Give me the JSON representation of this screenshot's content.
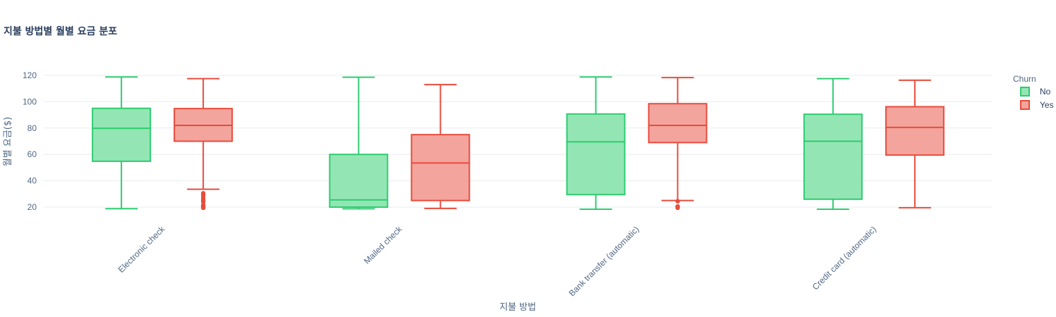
{
  "chart_data": {
    "type": "box",
    "title": "지불 방법별 월별 요금 분포",
    "xlabel": "지불 방법",
    "ylabel": "월별 요금($)",
    "categories": [
      "Electronic check",
      "Mailed check",
      "Bank transfer (automatic)",
      "Credit card (automatic)"
    ],
    "yticks": [
      20,
      40,
      60,
      80,
      100,
      120
    ],
    "ylim": [
      13,
      127
    ],
    "grid": true,
    "legend": {
      "title": "Churn",
      "position": "top-right"
    },
    "series": [
      {
        "name": "No",
        "color": "#2ecc71",
        "fill": "#94e5b4",
        "boxes": [
          {
            "min": 18.8,
            "q1": 54.8,
            "median": 79.8,
            "q3": 95.0,
            "max": 118.8,
            "outliers": []
          },
          {
            "min": 18.7,
            "q1": 20.0,
            "median": 25.5,
            "q3": 60.0,
            "max": 118.6,
            "outliers": []
          },
          {
            "min": 18.4,
            "q1": 29.5,
            "median": 69.5,
            "q3": 90.7,
            "max": 118.8,
            "outliers": []
          },
          {
            "min": 18.4,
            "q1": 26.0,
            "median": 70.0,
            "q3": 90.5,
            "max": 117.5,
            "outliers": []
          }
        ]
      },
      {
        "name": "Yes",
        "color": "#e74c3c",
        "fill": "#f3a49d",
        "boxes": [
          {
            "min": 33.6,
            "q1": 70.0,
            "median": 82.0,
            "q3": 94.8,
            "max": 117.5,
            "outliers": [
              19.5,
              20.5,
              21.5,
              24.0,
              25.5,
              27.0,
              29.0,
              30.5
            ]
          },
          {
            "min": 19.0,
            "q1": 25.0,
            "median": 53.5,
            "q3": 75.0,
            "max": 113.0,
            "outliers": []
          },
          {
            "min": 25.0,
            "q1": 69.0,
            "median": 82.0,
            "q3": 98.5,
            "max": 118.3,
            "outliers": [
              19.5,
              20.5,
              24.5
            ]
          },
          {
            "min": 19.5,
            "q1": 59.5,
            "median": 80.5,
            "q3": 96.2,
            "max": 116.3,
            "outliers": []
          }
        ]
      }
    ]
  }
}
